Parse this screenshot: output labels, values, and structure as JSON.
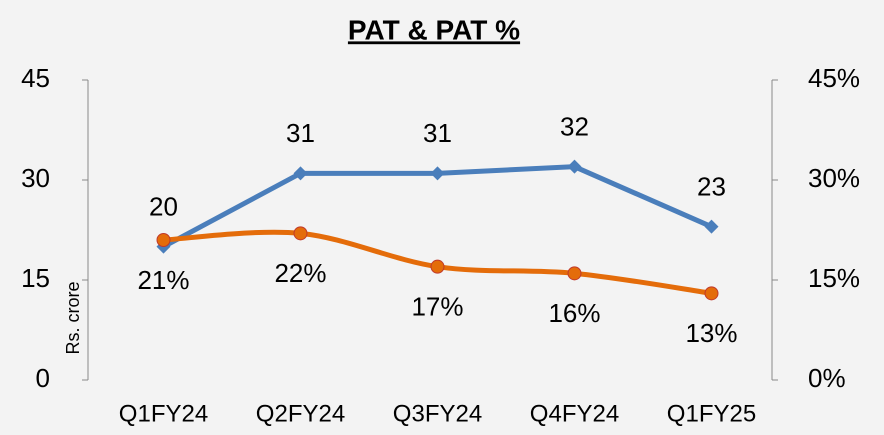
{
  "chart_data": {
    "type": "line",
    "title": "PAT & PAT %",
    "ylabel": "Rs. crore",
    "categories": [
      "Q1FY24",
      "Q2FY24",
      "Q3FY24",
      "Q4FY24",
      "Q1FY25"
    ],
    "series": [
      {
        "name": "PAT",
        "color": "#4a7ebb",
        "values": [
          20,
          31,
          31,
          32,
          23
        ]
      },
      {
        "name": "PAT %",
        "color": "#e46c0a",
        "axis": "y2",
        "values": [
          21,
          22,
          17,
          16,
          13
        ],
        "value_labels": [
          "21%",
          "22%",
          "17%",
          "16%",
          "13%"
        ]
      }
    ],
    "ylim": [
      0,
      45
    ],
    "yticks": [
      0,
      15,
      30,
      45
    ],
    "y2lim": [
      0,
      45
    ],
    "y2ticks": [
      {
        "value": 0,
        "label": "0%"
      },
      {
        "value": 15,
        "label": "15%"
      },
      {
        "value": 30,
        "label": "30%"
      },
      {
        "value": 45,
        "label": "45%"
      }
    ]
  }
}
